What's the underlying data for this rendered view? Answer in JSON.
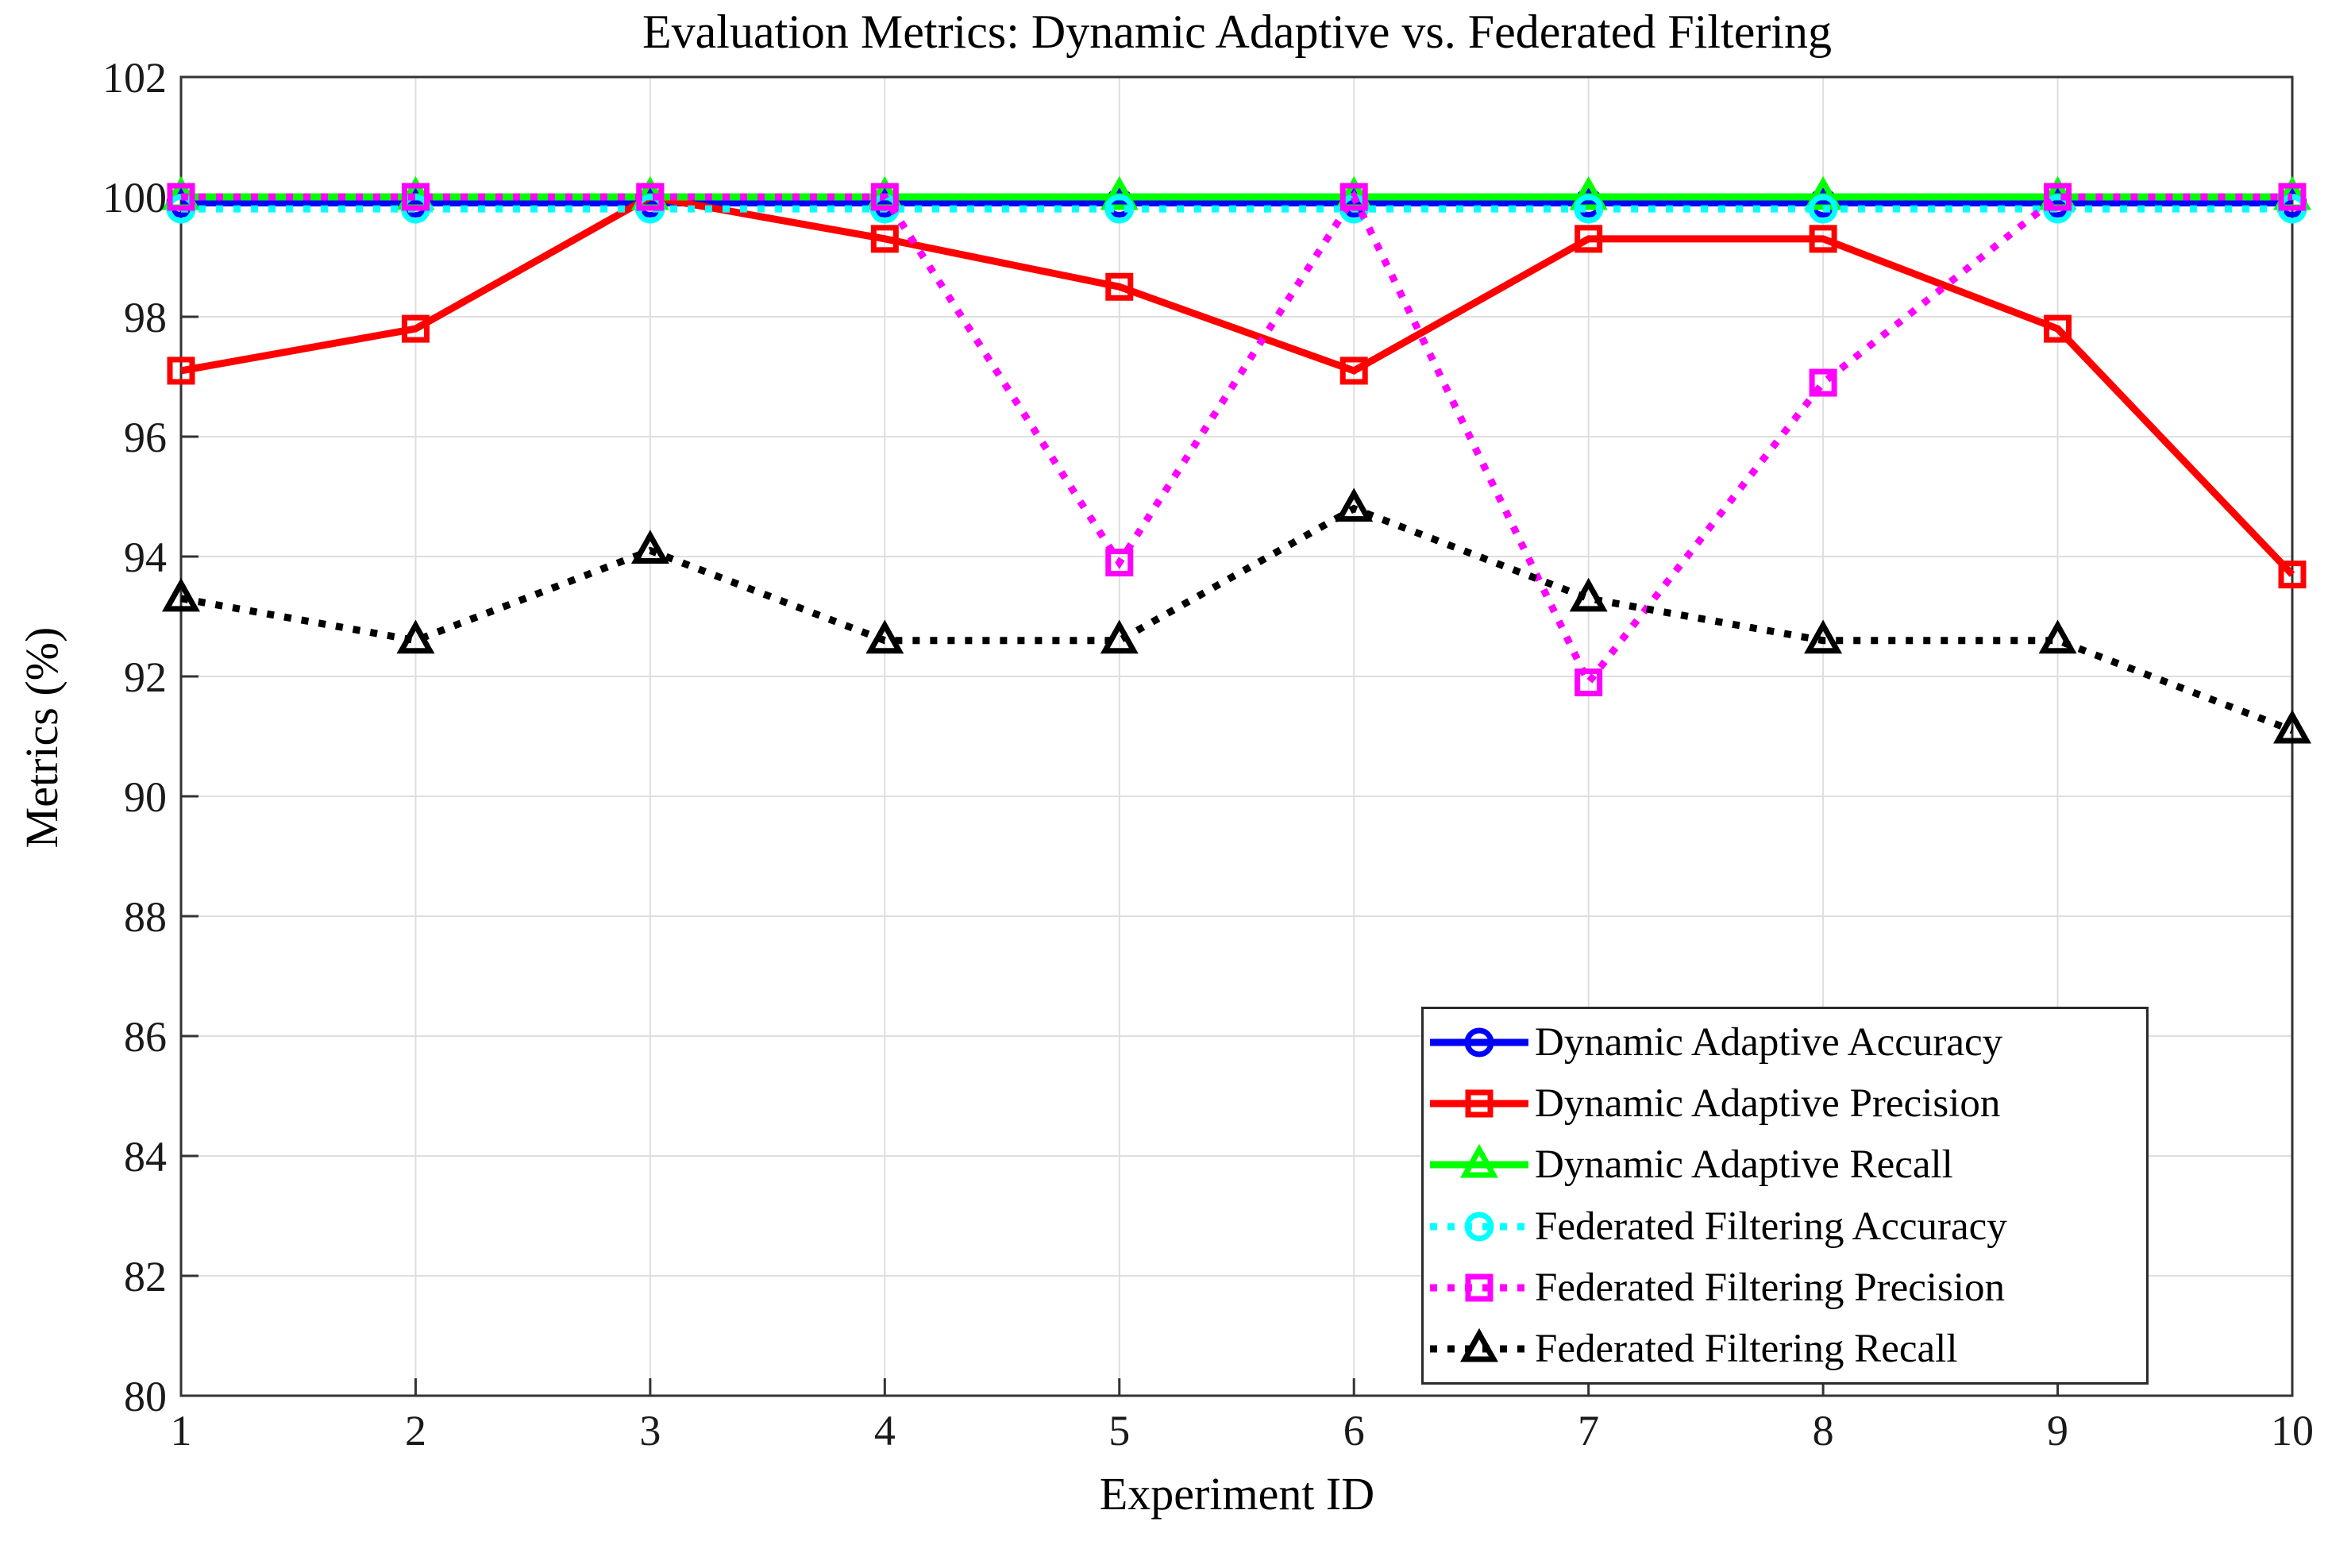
{
  "page": {
    "background_color": "#FFFFFF",
    "plot_background_color": "#FFFFFF",
    "grid_color": "#DEDEDE",
    "axis_color": "#333333",
    "tick_label_color": "#1A1A1A"
  },
  "chart_data": {
    "type": "line",
    "title": "Evaluation Metrics: Dynamic Adaptive vs. Federated Filtering",
    "xlabel": "Experiment ID",
    "ylabel": "Metrics (%)",
    "x": [
      1,
      2,
      3,
      4,
      5,
      6,
      7,
      8,
      9,
      10
    ],
    "xlim": [
      1,
      10
    ],
    "ylim": [
      80,
      102
    ],
    "xticks": [
      1,
      2,
      3,
      4,
      5,
      6,
      7,
      8,
      9,
      10
    ],
    "yticks": [
      80,
      82,
      84,
      86,
      88,
      90,
      92,
      94,
      96,
      98,
      100,
      102
    ],
    "grid": true,
    "legend_position": "lower-right-inside",
    "series": [
      {
        "name": "Dynamic Adaptive Accuracy",
        "color": "#0000FF",
        "line_style": "solid",
        "marker": "circle",
        "values": [
          99.9,
          99.9,
          99.9,
          99.9,
          99.9,
          99.9,
          99.9,
          99.9,
          99.9,
          99.9
        ]
      },
      {
        "name": "Dynamic Adaptive Precision",
        "color": "#FF0000",
        "line_style": "solid",
        "marker": "square",
        "values": [
          97.1,
          97.8,
          100.0,
          99.3,
          98.5,
          97.1,
          99.3,
          99.3,
          97.8,
          93.7
        ]
      },
      {
        "name": "Dynamic Adaptive Recall",
        "color": "#00FF00",
        "line_style": "solid",
        "marker": "triangle",
        "values": [
          100.0,
          100.0,
          100.0,
          100.0,
          100.0,
          100.0,
          100.0,
          100.0,
          100.0,
          100.0
        ]
      },
      {
        "name": "Federated Filtering Accuracy",
        "color": "#00FFFF",
        "line_style": "dotted",
        "marker": "circle",
        "values": [
          99.8,
          99.8,
          99.8,
          99.8,
          99.8,
          99.8,
          99.8,
          99.8,
          99.8,
          99.8
        ]
      },
      {
        "name": "Federated Filtering Precision",
        "color": "#FF00FF",
        "line_style": "dotted",
        "marker": "square",
        "values": [
          100.0,
          100.0,
          100.0,
          100.0,
          93.9,
          100.0,
          91.9,
          96.9,
          100.0,
          100.0
        ]
      },
      {
        "name": "Federated Filtering Recall",
        "color": "#000000",
        "line_style": "dotted",
        "marker": "triangle",
        "values": [
          93.3,
          92.6,
          94.1,
          92.6,
          92.6,
          94.8,
          93.3,
          92.6,
          92.6,
          91.1
        ]
      }
    ]
  }
}
